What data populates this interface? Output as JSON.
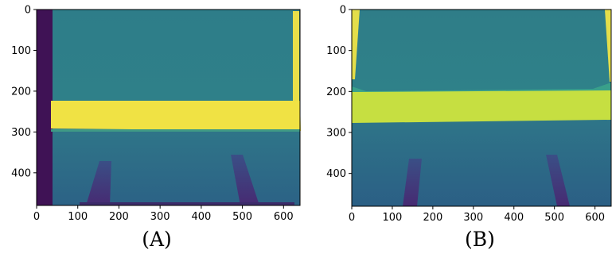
{
  "panels": [
    {
      "id": "A",
      "caption": "(A)",
      "x_ticks": [
        "0",
        "100",
        "200",
        "300",
        "400",
        "500",
        "600"
      ],
      "y_ticks": [
        "0",
        "100",
        "200",
        "300",
        "400"
      ]
    },
    {
      "id": "B",
      "caption": "(B)",
      "x_ticks": [
        "0",
        "100",
        "200",
        "300",
        "400",
        "500",
        "600"
      ],
      "y_ticks": [
        "0",
        "100",
        "200",
        "300",
        "400"
      ]
    }
  ],
  "colors": {
    "background_teal": "#2f7f8a",
    "lower_blue": "#2e6a8a",
    "deep_purple": "#3b1f5f",
    "dark_edge": "#3f1255",
    "bright_yellow": "#f0e044",
    "yellow_green": "#c9df3f"
  }
}
